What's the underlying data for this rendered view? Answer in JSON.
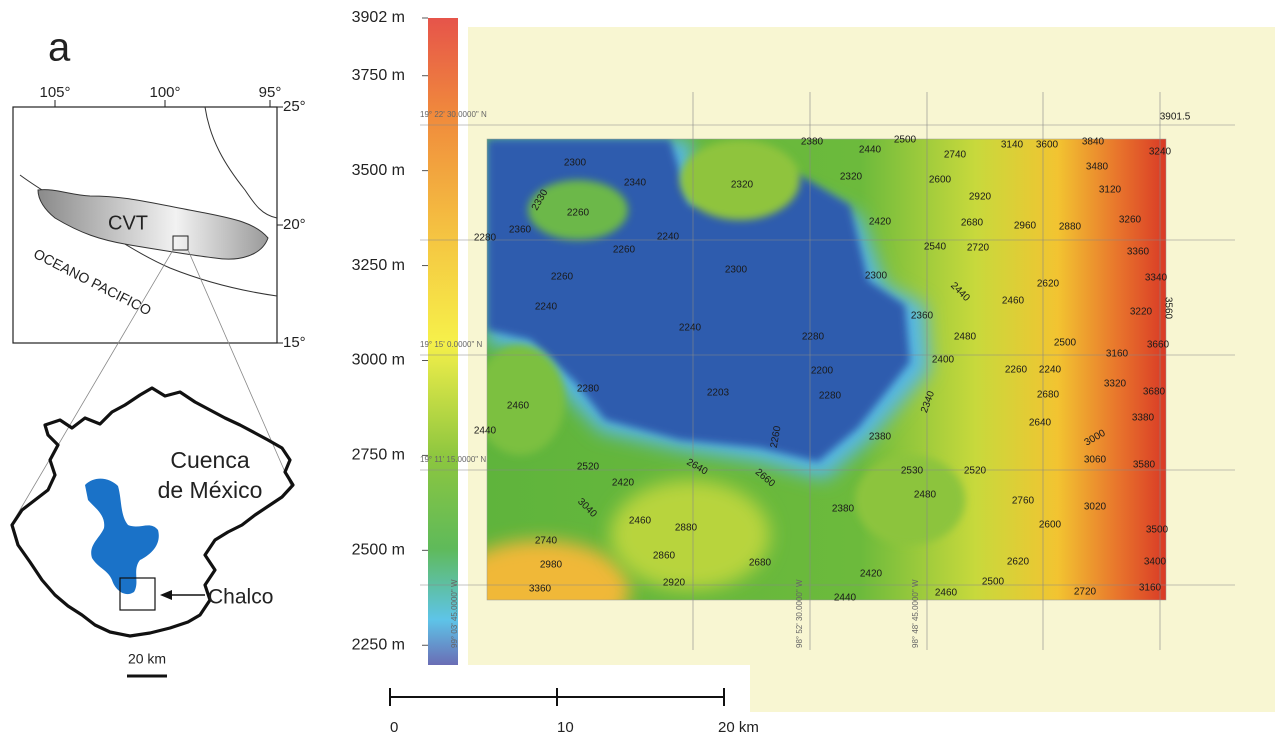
{
  "panel_label": "a",
  "inset": {
    "lon_labels": [
      "105°",
      "100°",
      "95°"
    ],
    "lat_labels": [
      "25°",
      "20°",
      "15°"
    ],
    "region_label": "CVT",
    "ocean_label": "OCEANO PACIFICO"
  },
  "basin": {
    "label_lines": [
      "Cuenca",
      "de México"
    ],
    "site_label": "Chalco",
    "scale_label": "20 km"
  },
  "colorbar": {
    "range": [
      2198,
      3902
    ],
    "ticks": [
      {
        "value": 3902,
        "label": "3902 m"
      },
      {
        "value": 3750,
        "label": "3750 m"
      },
      {
        "value": 3500,
        "label": "3500 m"
      },
      {
        "value": 3250,
        "label": "3250 m"
      },
      {
        "value": 3000,
        "label": "3000 m"
      },
      {
        "value": 2750,
        "label": "2750 m"
      },
      {
        "value": 2500,
        "label": "2500 m"
      },
      {
        "value": 2250,
        "label": "2250 m"
      }
    ]
  },
  "dem": {
    "lat_labels": [
      "19° 22' 30.0000\" N",
      "19° 15' 0.0000\" N",
      "19° 11' 15.0000\" N"
    ],
    "lon_labels": [
      "99° 03' 45.0000\" W",
      "98° 52' 30.0000\" W",
      "98° 48' 45.0000\" W"
    ],
    "max_label": "3901.5",
    "contour_labels": [
      "2300",
      "2340",
      "2260",
      "2360",
      "2280",
      "2320",
      "2380",
      "2440",
      "2500",
      "2740",
      "3140",
      "3600",
      "3840",
      "3240",
      "3480",
      "2320",
      "2600",
      "2920",
      "3120",
      "2240",
      "2260",
      "2420",
      "2680",
      "2960",
      "2880",
      "3260",
      "2540",
      "2720",
      "2300",
      "2260",
      "2300",
      "3360",
      "3340",
      "2620",
      "2460",
      "2240",
      "2360",
      "3220",
      "2240",
      "2280",
      "2480",
      "2500",
      "3160",
      "3660",
      "2400",
      "2200",
      "2260",
      "2240",
      "3320",
      "2280",
      "2203",
      "2280",
      "2680",
      "3680",
      "2460",
      "2640",
      "3380",
      "2440",
      "2380",
      "3060",
      "3580",
      "2520",
      "2530",
      "2520",
      "2420",
      "2480",
      "2760",
      "3020",
      "2460",
      "2880",
      "2380",
      "2600",
      "3500",
      "2740",
      "2860",
      "2680",
      "2980",
      "2420",
      "2620",
      "3400",
      "2920",
      "2500",
      "3360",
      "2440",
      "2460",
      "2720",
      "3160",
      "2330",
      "2440",
      "2340",
      "2260",
      "2640",
      "2660",
      "3040",
      "3000",
      "3560"
    ]
  },
  "scale_bar": {
    "range": [
      0,
      20
    ],
    "ticks": [
      0,
      10,
      {
        "value": 20,
        "label": "20 km"
      }
    ]
  }
}
